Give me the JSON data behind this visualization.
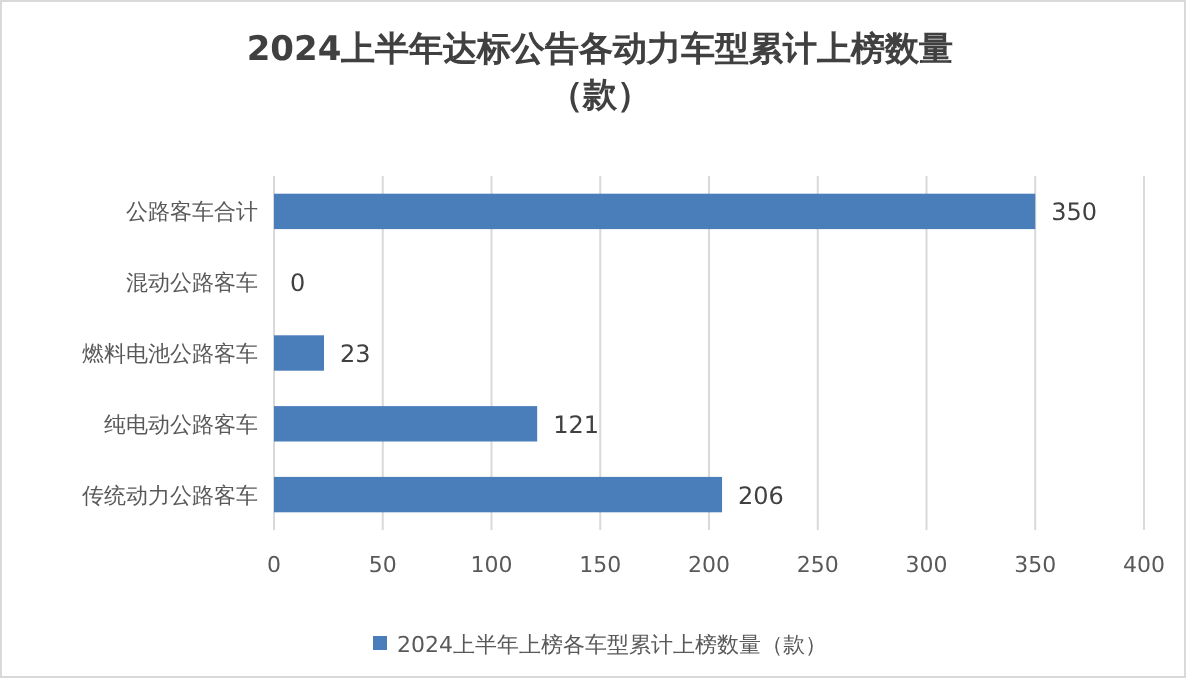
{
  "chart_data": {
    "type": "bar",
    "orientation": "horizontal",
    "title": "2024上半年达标公告各动力车型累计上榜数量（款）",
    "categories": [
      "公路客车合计",
      "混动公路客车",
      "燃料电池公路客车",
      "纯电动公路客车",
      "传统动力公路客车"
    ],
    "series": [
      {
        "name": "2024上半年上榜各车型累计上榜数量（款）",
        "color": "#4a7ebb",
        "values": [
          350,
          0,
          23,
          121,
          206
        ]
      }
    ],
    "xlim": [
      0,
      400
    ],
    "xticks": [
      0,
      50,
      100,
      150,
      200,
      250,
      300,
      350,
      400
    ],
    "grid": "x",
    "legend": "bottom",
    "data_labels": true
  }
}
